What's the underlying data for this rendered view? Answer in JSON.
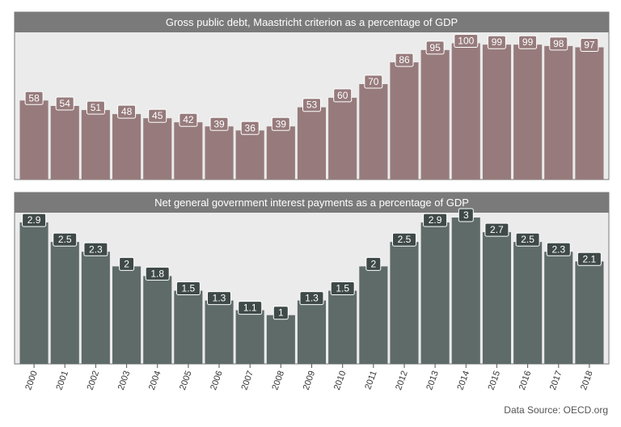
{
  "chart_data": [
    {
      "type": "bar",
      "title": "Gross public debt, Maastricht criterion as a percentage of GDP",
      "categories": [
        "2000",
        "2001",
        "2002",
        "2003",
        "2004",
        "2005",
        "2006",
        "2007",
        "2008",
        "2009",
        "2010",
        "2011",
        "2012",
        "2013",
        "2014",
        "2015",
        "2016",
        "2017",
        "2018"
      ],
      "values": [
        58,
        54,
        51,
        48,
        45,
        42,
        39,
        36,
        39,
        53,
        60,
        70,
        86,
        95,
        100,
        99,
        99,
        98,
        97
      ],
      "ylim": [
        0,
        108
      ],
      "bar_color": "#977b7c",
      "label_color": "#977b7c"
    },
    {
      "type": "bar",
      "title": "Net general government interest payments as a percentage of GDP",
      "categories": [
        "2000",
        "2001",
        "2002",
        "2003",
        "2004",
        "2005",
        "2006",
        "2007",
        "2008",
        "2009",
        "2010",
        "2011",
        "2012",
        "2013",
        "2014",
        "2015",
        "2016",
        "2017",
        "2018"
      ],
      "values": [
        2.9,
        2.5,
        2.3,
        2,
        1.8,
        1.5,
        1.3,
        1.1,
        1,
        1.3,
        1.5,
        2,
        2.5,
        2.9,
        3,
        2.7,
        2.5,
        2.3,
        2.1
      ],
      "ylim": [
        0,
        3.1
      ],
      "bar_color": "#5e6b69",
      "label_color": "#3f4a48"
    }
  ],
  "source": "Data Source: OECD.org"
}
